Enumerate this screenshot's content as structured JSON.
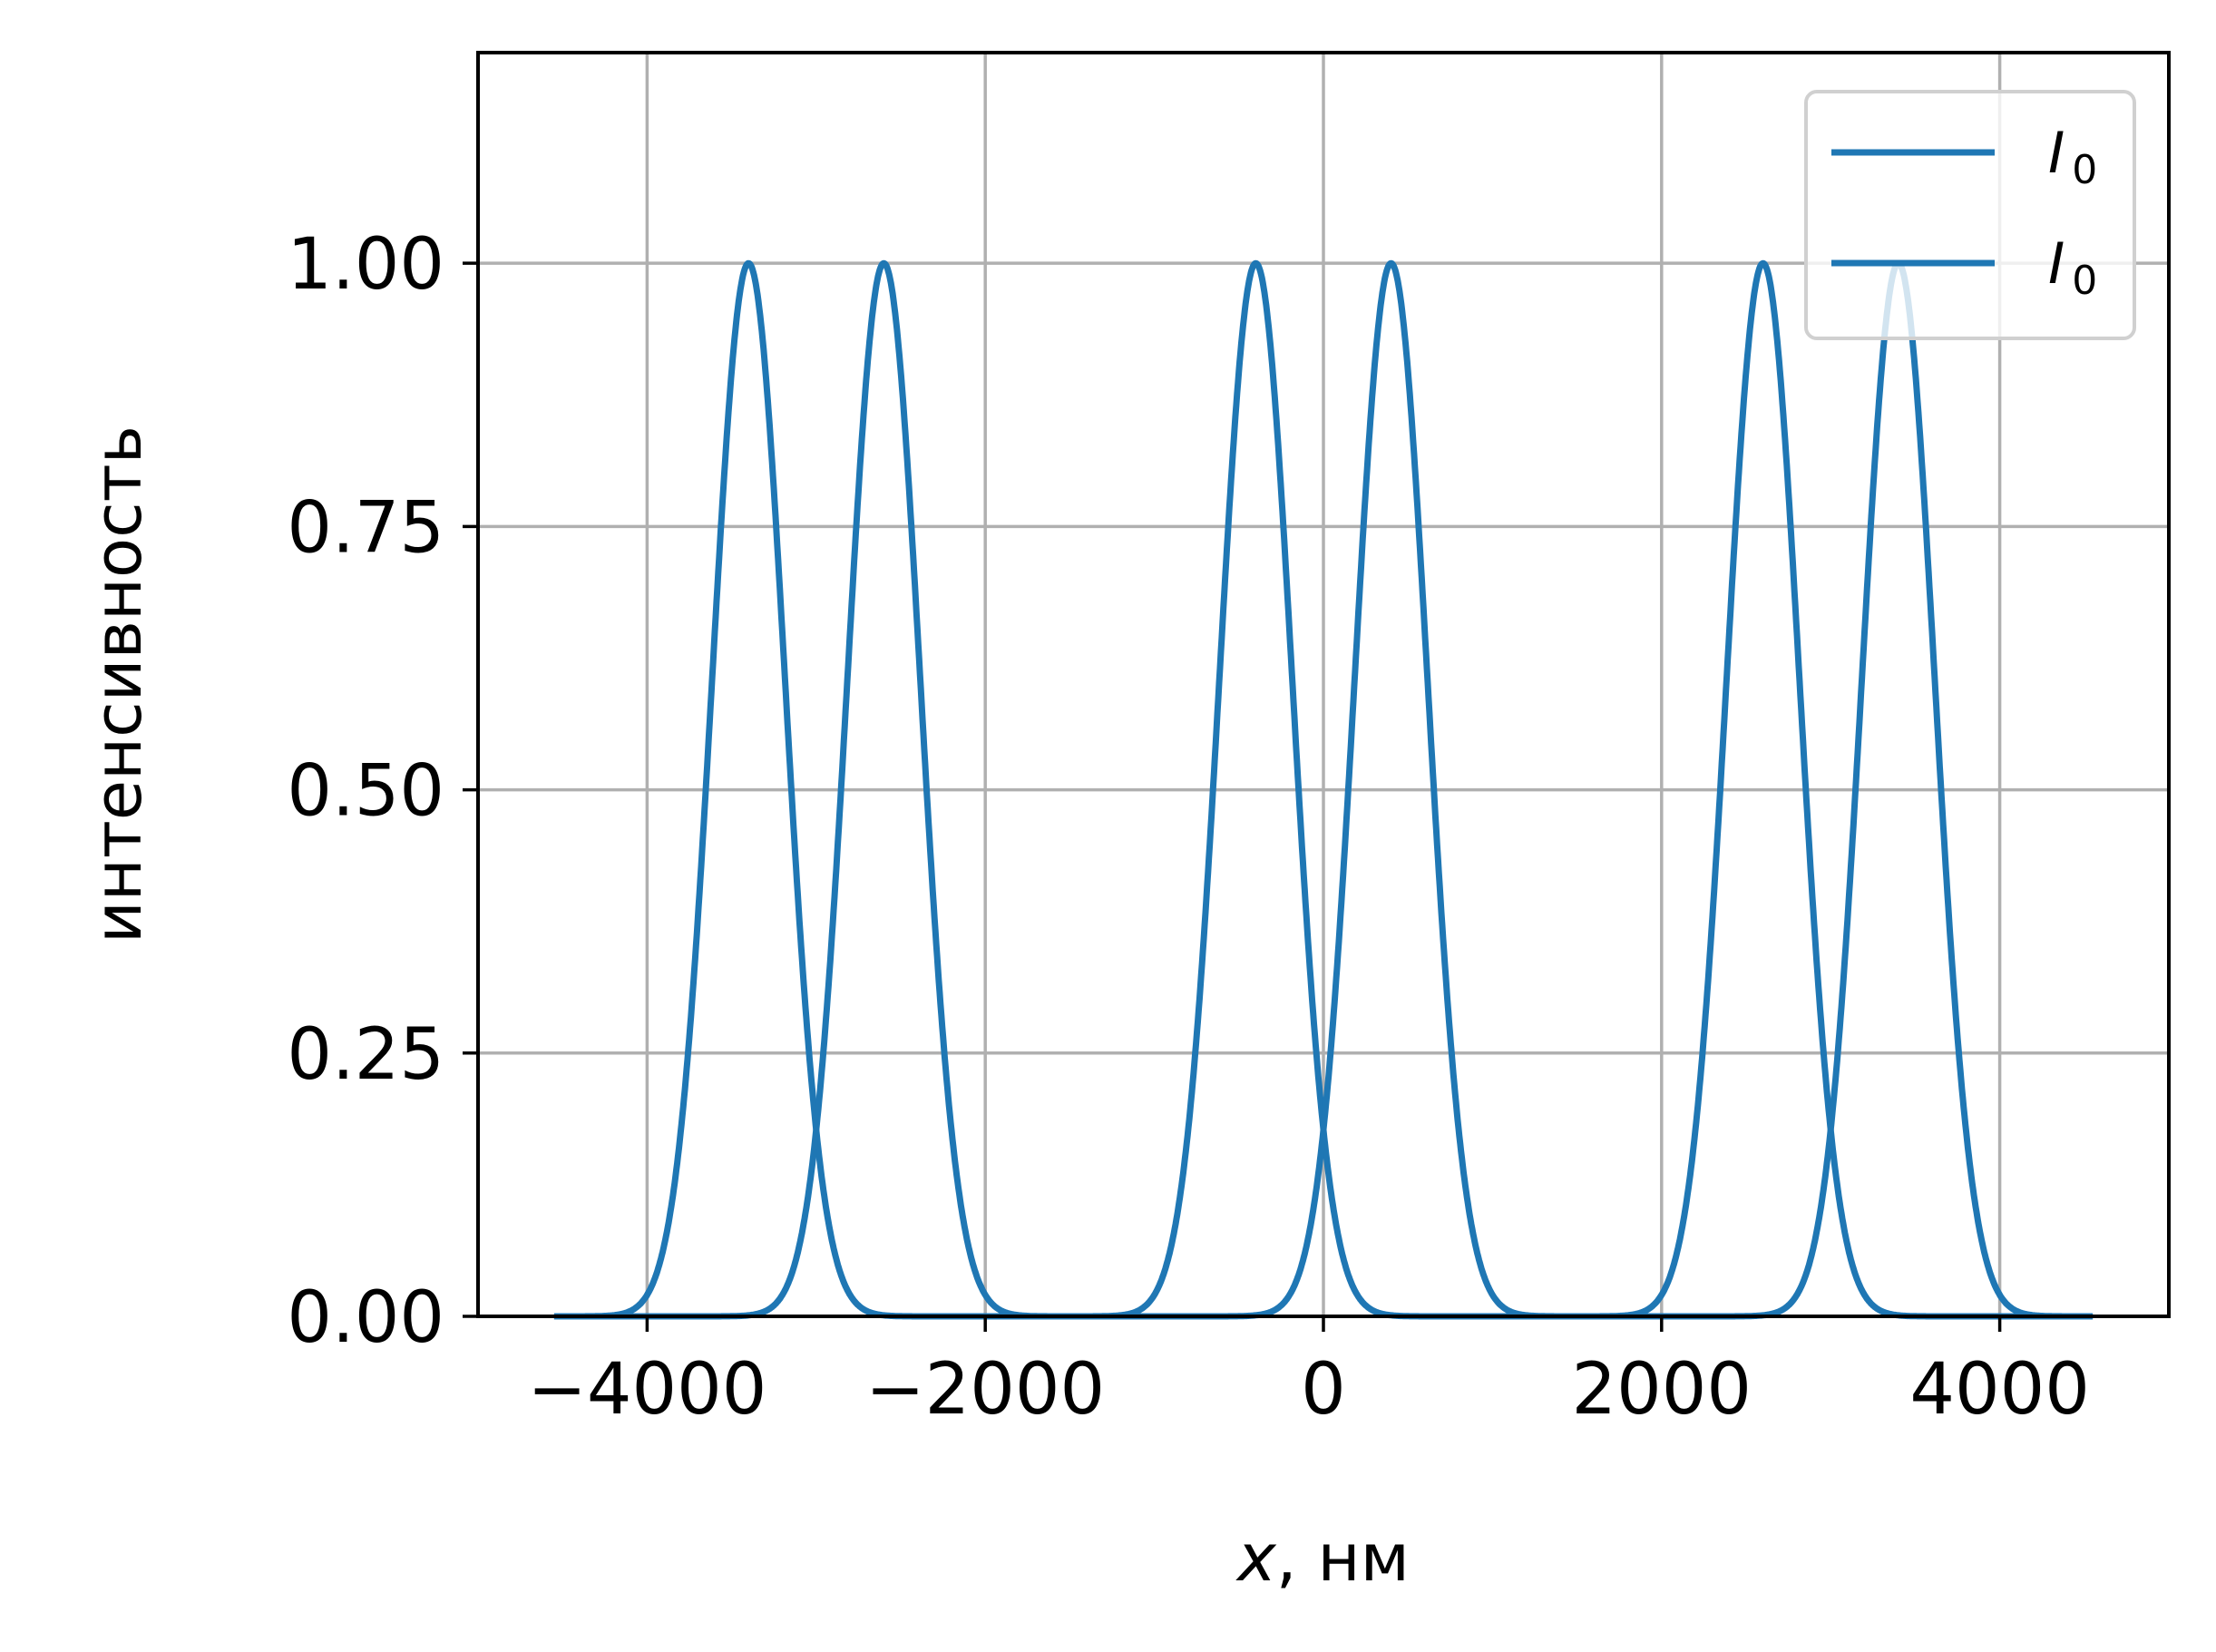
{
  "chart_data": {
    "type": "line",
    "title": "",
    "xlabel": "x, нм",
    "xlabel_var": "x",
    "xlabel_unit": ", нм",
    "ylabel": "интенсивность",
    "xlim": [
      -5000,
      5000
    ],
    "ylim": [
      0,
      1.2
    ],
    "xticks": [
      -4000,
      -2000,
      0,
      2000,
      4000
    ],
    "xtick_labels": [
      "−4000",
      "−2000",
      "0",
      "2000",
      "4000"
    ],
    "yticks": [
      0,
      0.25,
      0.5,
      0.75,
      1.0
    ],
    "ytick_labels": [
      "0.00",
      "0.25",
      "0.50",
      "0.75",
      "1.00"
    ],
    "grid": true,
    "legend_position": "top-right",
    "x_range": [
      -4550,
      4550
    ],
    "series": [
      {
        "name": "I0",
        "legend_label": "I",
        "legend_sub": "0",
        "color": "#1f77b4",
        "description": "Gaussian peaks of height 1 centered at x = -3400, -400, 2600",
        "centers": [
          -3400,
          -400,
          2600
        ],
        "amplitude": 1.0,
        "sigma": 215
      },
      {
        "name": "I0",
        "legend_label": "I",
        "legend_sub": "0",
        "color": "#1f77b4",
        "description": "Gaussian peaks of height 1 centered at x = -2600, 400, 3400",
        "centers": [
          -2600,
          400,
          3400
        ],
        "amplitude": 1.0,
        "sigma": 215
      }
    ]
  }
}
